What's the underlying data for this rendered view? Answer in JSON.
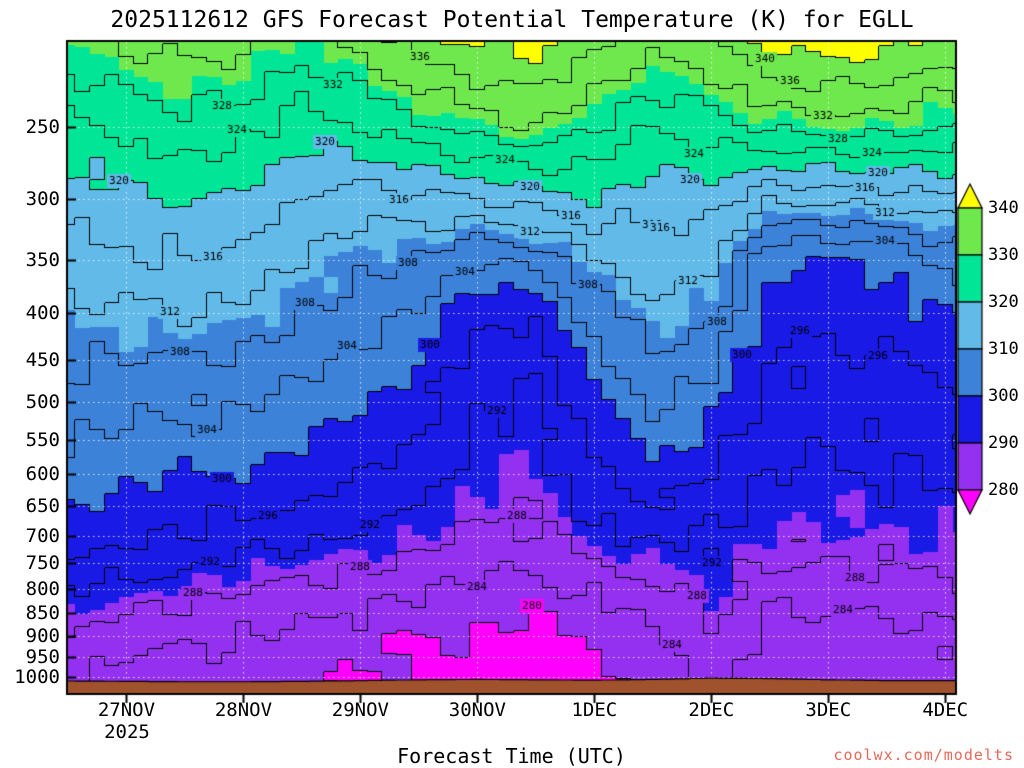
{
  "title": "2025112612 GFS Forecast Potential Temperature (K) for EGLL",
  "watermark": "coolwx.com/modelts",
  "watermark_color": "#e8685a",
  "chart_data": {
    "type": "filled_contour",
    "title": "2025112612 GFS Forecast Potential Temperature (K) for EGLL",
    "xlabel": "Forecast Time (UTC)",
    "x_axis": {
      "range_hours": [
        0,
        182
      ],
      "ticks": [
        {
          "hour": 12,
          "label": "27NOV"
        },
        {
          "hour": 36,
          "label": "28NOV"
        },
        {
          "hour": 60,
          "label": "29NOV"
        },
        {
          "hour": 84,
          "label": "30NOV"
        },
        {
          "hour": 108,
          "label": "1DEC"
        },
        {
          "hour": 132,
          "label": "2DEC"
        },
        {
          "hour": 156,
          "label": "3DEC"
        },
        {
          "hour": 180,
          "label": "4DEC"
        }
      ],
      "year_label": "2025"
    },
    "y_axis": {
      "quantity": "pressure_hPa",
      "scale": "log",
      "range_hpa": [
        202,
        1040
      ],
      "ticks_hpa": [
        250,
        300,
        350,
        400,
        450,
        500,
        550,
        600,
        650,
        700,
        750,
        800,
        850,
        900,
        950,
        1000
      ]
    },
    "contour_interval": 4,
    "fill_levels": [
      280,
      290,
      300,
      310,
      320,
      330,
      340
    ],
    "fill_colors": [
      "#FF00FF",
      "#9430F0",
      "#1A1AE6",
      "#3C82D8",
      "#62BAE8",
      "#00E696",
      "#6FE84E",
      "#FFFF00"
    ],
    "colorbar_ticks": [
      340,
      330,
      320,
      310,
      300,
      290,
      280
    ],
    "time_hours": [
      0,
      12,
      24,
      36,
      48,
      60,
      72,
      84,
      96,
      108,
      120,
      132,
      144,
      156,
      168,
      180
    ],
    "pressure_levels": [
      200,
      250,
      300,
      350,
      400,
      450,
      500,
      550,
      600,
      650,
      700,
      750,
      800,
      850,
      900,
      950,
      1000
    ],
    "theta_grid": [
      [
        331,
        323,
        318,
        315,
        311,
        308,
        306,
        304,
        302,
        300,
        298,
        295,
        292,
        290,
        288,
        286,
        285
      ],
      [
        333,
        325,
        319,
        315,
        311,
        308,
        305,
        303,
        301,
        299,
        297,
        294,
        291,
        288,
        286,
        284,
        283
      ],
      [
        334,
        327,
        320,
        316,
        312,
        308,
        305,
        303,
        300,
        298,
        296,
        293,
        290,
        287,
        285,
        283,
        282
      ],
      [
        333,
        326,
        319,
        315,
        311,
        307,
        304,
        302,
        300,
        297,
        294,
        291,
        288,
        286,
        284,
        283,
        282
      ],
      [
        330,
        322,
        316,
        312,
        308,
        305,
        302,
        300,
        298,
        296,
        293,
        290,
        287,
        285,
        283,
        282,
        281
      ],
      [
        334,
        324,
        314,
        309,
        306,
        303,
        300,
        298,
        296,
        294,
        292,
        289,
        286,
        284,
        282,
        281,
        280
      ],
      [
        339,
        327,
        315,
        308,
        303,
        300,
        298,
        296,
        294,
        292,
        290,
        287,
        284,
        282,
        280,
        279.5,
        279
      ],
      [
        341,
        330,
        316,
        304,
        297,
        294,
        292.5,
        291.5,
        290.5,
        289,
        287.5,
        285,
        283,
        281,
        279.5,
        279,
        278.5
      ],
      [
        342,
        332,
        318,
        305,
        297,
        293,
        291.5,
        290.5,
        289.5,
        288.5,
        287,
        285,
        283,
        280.5,
        279,
        278.5,
        278
      ],
      [
        338,
        328,
        320,
        312,
        306,
        302,
        299,
        297,
        295,
        293,
        291,
        288,
        285,
        283,
        281,
        279.8,
        279.4
      ],
      [
        334,
        324,
        317,
        314,
        311,
        308,
        305,
        302,
        299,
        296,
        293,
        290,
        287,
        285,
        283,
        282,
        281
      ],
      [
        336,
        326,
        318,
        313,
        309,
        305,
        301,
        298,
        296,
        294,
        292,
        291,
        290.5,
        289.5,
        288.5,
        287,
        285.5
      ],
      [
        342,
        329,
        313,
        301,
        298,
        296,
        294.5,
        293,
        292,
        291,
        290,
        288,
        286,
        284,
        283,
        282,
        281
      ],
      [
        343,
        330,
        313,
        299.5,
        297,
        295,
        293.5,
        292.5,
        291.5,
        290.5,
        289.5,
        288,
        286,
        284,
        282.5,
        281.5,
        281
      ],
      [
        342,
        330,
        314,
        300.5,
        298,
        296,
        294,
        293,
        292,
        291,
        290,
        288.5,
        286.5,
        284.5,
        283,
        282,
        281.5
      ],
      [
        339,
        328,
        315,
        305,
        300,
        297,
        295,
        293.5,
        292.5,
        291.5,
        290,
        288.5,
        287,
        285,
        283.5,
        282.5,
        282
      ]
    ],
    "surface_pressure_hpa": [
      1009,
      1010,
      1011,
      1011,
      1010,
      1008,
      1006,
      1005,
      1006,
      1007,
      1005,
      1002,
      1003,
      1006,
      1008,
      1008
    ],
    "ground_color": "#A0522D",
    "contour_labels_format": "[value_K, x_fraction, y_fraction_hint]",
    "contour_labels": [
      [
        328,
        0.174,
        0.051
      ],
      [
        332,
        0.299,
        0.066
      ],
      [
        336,
        0.397,
        0.028
      ],
      [
        324,
        0.706,
        0.046
      ],
      [
        340,
        0.786,
        0.04
      ],
      [
        336,
        0.814,
        0.071
      ],
      [
        320,
        0.701,
        0.077
      ],
      [
        332,
        0.851,
        0.097
      ],
      [
        328,
        0.868,
        0.12
      ],
      [
        324,
        0.906,
        0.128
      ],
      [
        316,
        0.373,
        0.132
      ],
      [
        324,
        0.19,
        0.152
      ],
      [
        320,
        0.29,
        0.161
      ],
      [
        320,
        0.057,
        0.178
      ],
      [
        320,
        0.913,
        0.163
      ],
      [
        316,
        0.898,
        0.197
      ],
      [
        324,
        0.493,
        0.2
      ],
      [
        320,
        0.521,
        0.22
      ],
      [
        308,
        0.383,
        0.235
      ],
      [
        316,
        0.658,
        0.223
      ],
      [
        316,
        0.567,
        0.23
      ],
      [
        312,
        0.921,
        0.25
      ],
      [
        312,
        0.521,
        0.3
      ],
      [
        316,
        0.667,
        0.266
      ],
      [
        304,
        0.921,
        0.35
      ],
      [
        308,
        0.267,
        0.442
      ],
      [
        304,
        0.315,
        0.416
      ],
      [
        304,
        0.448,
        0.378
      ],
      [
        296,
        0.825,
        0.393
      ],
      [
        312,
        0.699,
        0.39
      ],
      [
        296,
        0.913,
        0.465
      ],
      [
        308,
        0.586,
        0.473
      ],
      [
        316,
        0.163,
        0.332
      ],
      [
        312,
        0.115,
        0.413
      ],
      [
        292,
        0.484,
        0.545
      ],
      [
        300,
        0.76,
        0.505
      ],
      [
        308,
        0.732,
        0.409
      ],
      [
        308,
        0.126,
        0.645
      ],
      [
        300,
        0.408,
        0.642
      ],
      [
        304,
        0.157,
        0.719
      ],
      [
        300,
        0.174,
        0.753
      ],
      [
        288,
        0.506,
        0.737
      ],
      [
        292,
        0.34,
        0.776
      ],
      [
        296,
        0.225,
        0.803
      ],
      [
        292,
        0.726,
        0.817
      ],
      [
        288,
        0.887,
        0.808
      ],
      [
        288,
        0.329,
        0.845
      ],
      [
        284,
        0.461,
        0.823
      ],
      [
        292,
        0.16,
        0.888
      ],
      [
        284,
        0.874,
        0.877
      ],
      [
        288,
        0.141,
        0.926
      ],
      [
        288,
        0.709,
        0.905
      ],
      [
        284,
        0.681,
        0.942
      ],
      [
        280,
        0.523,
        0.903
      ]
    ]
  }
}
